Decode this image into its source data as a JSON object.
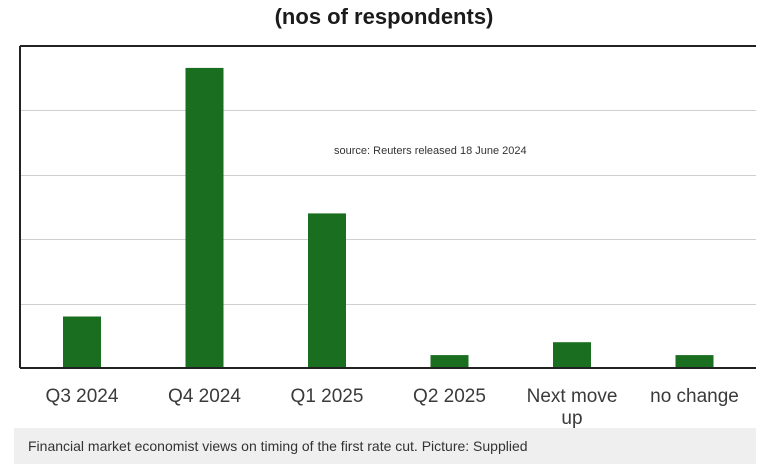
{
  "chart_data": {
    "type": "bar",
    "title": "(nos  of respondents)",
    "annotation": "source:  Reuters released 18 June 2024",
    "categories": [
      "Q3 2024",
      "Q4 2024",
      "Q1 2025",
      "Q2 2025",
      "Next move up",
      "no change"
    ],
    "values": [
      4,
      23.3,
      12,
      1,
      2,
      1
    ],
    "ylim": [
      0,
      25
    ],
    "yticks": [
      0,
      5,
      10,
      15,
      20,
      25
    ],
    "y_tick_labels_visible": false,
    "grid": true,
    "bar_color": "#1a6e1f",
    "xlabel": "",
    "ylabel": ""
  },
  "caption": "Financial market economist views on timing of the first rate cut. Picture: Supplied"
}
